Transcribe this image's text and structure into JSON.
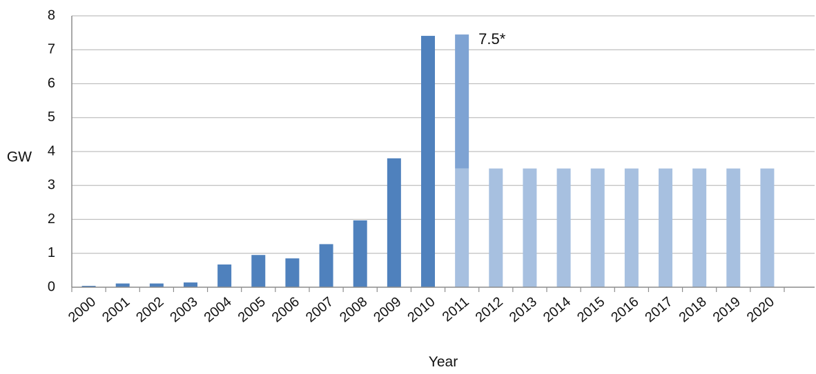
{
  "chart_data": {
    "type": "bar",
    "title": "",
    "xlabel": "Year",
    "ylabel": "GW",
    "ylim": [
      0,
      8
    ],
    "yticks": [
      0,
      1,
      2,
      3,
      4,
      5,
      6,
      7,
      8
    ],
    "grid": true,
    "legend": "none",
    "categories": [
      "2000",
      "2001",
      "2002",
      "2003",
      "2004",
      "2005",
      "2006",
      "2007",
      "2008",
      "2009",
      "2010",
      "2011",
      "2012",
      "2013",
      "2014",
      "2015",
      "2016",
      "2017",
      "2018",
      "2019",
      "2020"
    ],
    "series": [
      {
        "color": "#4f81bd",
        "values": [
          0.04,
          0.11,
          0.11,
          0.14,
          0.67,
          0.95,
          0.85,
          1.27,
          1.97,
          3.8,
          7.41,
          null,
          null,
          null,
          null,
          null,
          null,
          null,
          null,
          null,
          null
        ]
      },
      {
        "color": "#a7c0e0",
        "values": [
          null,
          null,
          null,
          null,
          null,
          null,
          null,
          null,
          null,
          null,
          null,
          3.5,
          3.5,
          3.5,
          3.5,
          3.5,
          3.5,
          3.5,
          3.5,
          3.5,
          3.5
        ]
      },
      {
        "color": "#7ea3d3",
        "stacked_on_previous": true,
        "values": [
          null,
          null,
          null,
          null,
          null,
          null,
          null,
          null,
          null,
          null,
          null,
          3.95,
          null,
          null,
          null,
          null,
          null,
          null,
          null,
          null,
          null
        ]
      }
    ],
    "annotations": [
      {
        "category": "2011",
        "text": "7.5*"
      }
    ]
  }
}
